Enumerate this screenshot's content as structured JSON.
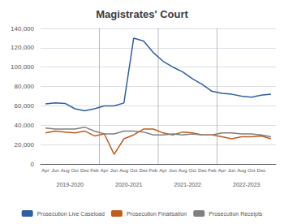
{
  "chart_data": {
    "type": "line",
    "title": "Magistrates' Court",
    "categories": [
      "Apr",
      "Jun",
      "Aug",
      "Oct",
      "Dec",
      "Feb",
      "Apr",
      "Jun",
      "Aug",
      "Oct",
      "Dec",
      "Feb",
      "Apr",
      "Jun",
      "Aug",
      "Oct",
      "Dec",
      "Feb",
      "Apr",
      "Jun",
      "Aug",
      "Oct",
      "Dec",
      null
    ],
    "annotations": [
      "2019-2020",
      "2020-2021",
      "2021-2022",
      "2022-2023"
    ],
    "series": [
      {
        "name": "Prosecution Live Caseload",
        "color": "#2e5fa3",
        "values": [
          62000,
          63000,
          62500,
          57000,
          55000,
          57000,
          60000,
          60000,
          63000,
          130000,
          127000,
          115000,
          106000,
          100000,
          95000,
          88000,
          82000,
          75000,
          73000,
          72000,
          70000,
          69000,
          71000,
          72000
        ]
      },
      {
        "name": "Prosecution Finalisation",
        "color": "#c05c1e",
        "values": [
          32000,
          34000,
          33000,
          32000,
          34000,
          29000,
          31000,
          10000,
          26000,
          30000,
          36000,
          36000,
          32000,
          30000,
          33000,
          32000,
          30000,
          30000,
          28000,
          26000,
          28000,
          28000,
          29000,
          26000
        ]
      },
      {
        "name": "Prosecution Receipts",
        "color": "#808080",
        "values": [
          37000,
          36000,
          36000,
          36000,
          38000,
          34000,
          31000,
          31000,
          34000,
          34000,
          33000,
          30000,
          30000,
          31000,
          30000,
          31000,
          30000,
          30000,
          32000,
          32000,
          31000,
          31000,
          30000,
          28000
        ]
      }
    ],
    "ylim": [
      0,
      140000
    ],
    "yticks": [
      0,
      {
        "value": 20000,
        "label": "20,000"
      },
      {
        "value": 40000,
        "label": "40,000"
      },
      {
        "value": 60000,
        "label": "60,000"
      },
      {
        "value": 80000,
        "label": "80,000"
      },
      {
        "value": 100000,
        "label": "100,000"
      },
      {
        "value": 120000,
        "label": "120,000"
      },
      {
        "value": 140000,
        "label": "140,000"
      }
    ],
    "grid": true,
    "legend": "bottom"
  }
}
